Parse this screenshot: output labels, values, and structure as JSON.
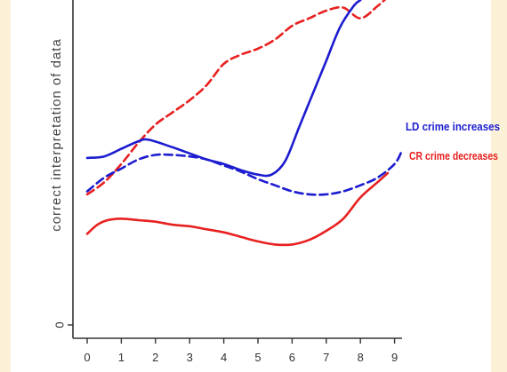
{
  "chart_data": {
    "type": "line",
    "title": "",
    "xlabel": "",
    "ylabel": "correct interpretation of data",
    "xlim": [
      -0.3,
      9.5
    ],
    "ylim": [
      -0.2,
      10.4
    ],
    "x_ticks": [
      "0",
      "1",
      "2",
      "3",
      "4",
      "5",
      "6",
      "7",
      "8",
      "9"
    ],
    "y_ticks": [
      "0"
    ],
    "grid": false,
    "legend": "none",
    "annotations": [
      {
        "text": "LD crime increases",
        "color": "#1c1cd0"
      },
      {
        "text": "CR crime decreases",
        "color": "#e82020"
      }
    ],
    "series": [
      {
        "color": "#e82020",
        "style": "dashed",
        "x": [
          0,
          0.5,
          1,
          1.5,
          2,
          2.5,
          3,
          3.5,
          4,
          4.5,
          5,
          5.5,
          6,
          6.5,
          7,
          7.5,
          8,
          8.5,
          8.8
        ],
        "y": [
          4.3,
          4.7,
          5.3,
          6.0,
          6.6,
          7.0,
          7.4,
          7.9,
          8.6,
          8.9,
          9.1,
          9.4,
          9.85,
          10.1,
          10.35,
          10.45,
          10.1,
          10.5,
          10.8
        ]
      },
      {
        "color": "#1c1cd0",
        "style": "solid",
        "x": [
          0,
          0.5,
          1,
          1.5,
          1.8,
          2.5,
          3,
          3.5,
          4,
          4.5,
          5,
          5.4,
          5.8,
          6.2,
          6.6,
          7,
          7.4,
          7.8,
          8
        ],
        "y": [
          5.5,
          5.55,
          5.8,
          6.05,
          6.1,
          5.85,
          5.65,
          5.45,
          5.3,
          5.1,
          4.95,
          4.95,
          5.4,
          6.5,
          7.6,
          8.7,
          9.8,
          10.5,
          10.7
        ]
      },
      {
        "color": "#1c1cd0",
        "style": "dashed",
        "x": [
          0,
          0.5,
          1,
          1.5,
          2,
          2.5,
          3,
          3.5,
          4,
          4.5,
          5,
          5.5,
          6,
          6.5,
          7,
          7.5,
          8,
          8.5,
          9,
          9.2
        ],
        "y": [
          4.4,
          4.85,
          5.15,
          5.45,
          5.6,
          5.6,
          5.55,
          5.45,
          5.25,
          5.05,
          4.8,
          4.6,
          4.4,
          4.3,
          4.3,
          4.4,
          4.6,
          4.85,
          5.3,
          5.7
        ]
      },
      {
        "color": "#e82020",
        "style": "solid",
        "x": [
          0,
          0.3,
          0.6,
          1,
          1.5,
          2,
          2.5,
          3,
          3.5,
          4,
          4.5,
          5,
          5.5,
          6,
          6.5,
          7,
          7.5,
          8,
          8.5,
          8.8
        ],
        "y": [
          3.0,
          3.3,
          3.45,
          3.5,
          3.45,
          3.4,
          3.3,
          3.25,
          3.15,
          3.05,
          2.9,
          2.75,
          2.65,
          2.65,
          2.8,
          3.1,
          3.5,
          4.2,
          4.7,
          5.0
        ]
      }
    ]
  }
}
